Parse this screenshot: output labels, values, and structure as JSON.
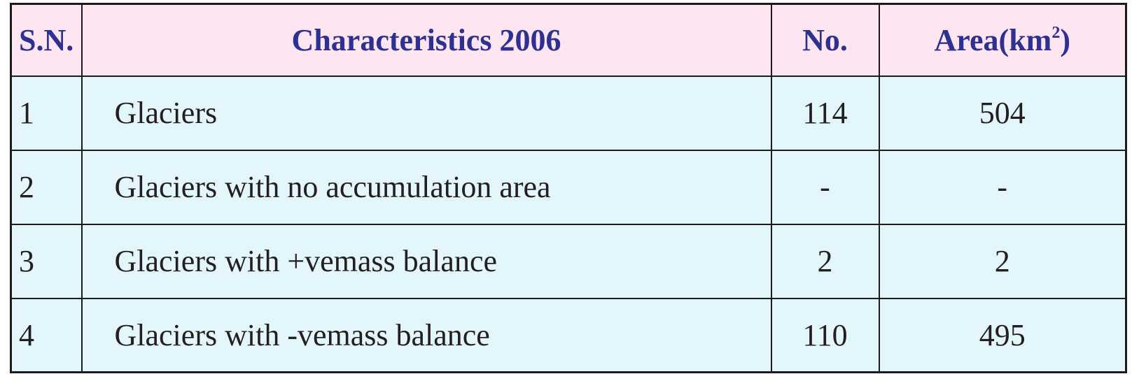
{
  "table": {
    "headers": {
      "sn": "S.N.",
      "characteristics": "Characteristics 2006",
      "no": "No.",
      "area_base": "Area(km",
      "area_sup": "2",
      "area_close": ")"
    },
    "rows": [
      {
        "sn": "1",
        "characteristic": "Glaciers",
        "no": "114",
        "area": "504"
      },
      {
        "sn": "2",
        "characteristic": "Glaciers with no accumulation area",
        "no": "-",
        "area": "-"
      },
      {
        "sn": "3",
        "characteristic": "Glaciers with +vemass balance",
        "no": "2",
        "area": "2"
      },
      {
        "sn": "4",
        "characteristic": "Glaciers with -vemass balance",
        "no": "110",
        "area": "495"
      }
    ]
  }
}
